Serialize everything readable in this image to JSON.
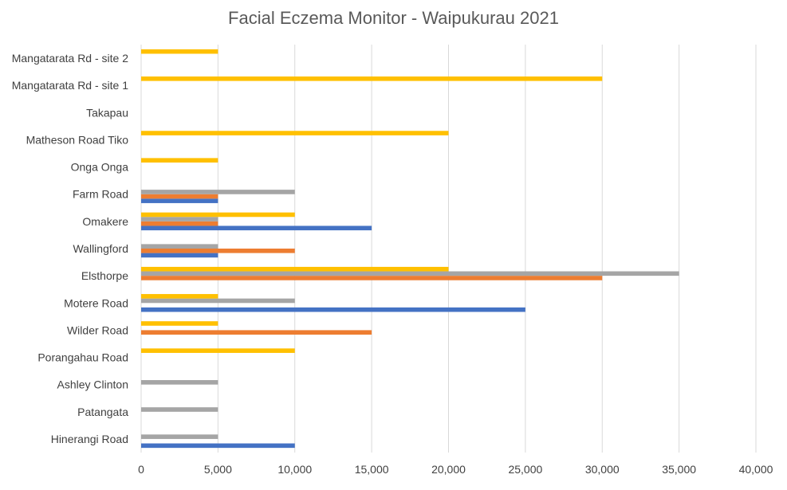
{
  "chart_data": {
    "type": "bar",
    "orientation": "horizontal",
    "title": "Facial Eczema Monitor - Waipukurau 2021",
    "categories": [
      "Mangatarata Rd - site 2",
      "Mangatarata Rd - site 1",
      "Takapau",
      "Matheson Road Tiko",
      "Onga Onga",
      "Farm Road",
      "Omakere",
      "Wallingford",
      "Elsthorpe",
      "Motere Road",
      "Wilder Road",
      "Porangahau Road",
      "Ashley Clinton",
      "Patangata",
      "Hinerangi Road"
    ],
    "series": [
      {
        "color": "#4472C4",
        "values": [
          0,
          0,
          0,
          0,
          0,
          5000,
          15000,
          5000,
          0,
          25000,
          0,
          0,
          0,
          0,
          10000
        ]
      },
      {
        "color": "#ED7D31",
        "values": [
          0,
          0,
          0,
          0,
          0,
          5000,
          5000,
          10000,
          30000,
          0,
          15000,
          0,
          0,
          0,
          0
        ]
      },
      {
        "color": "#A5A5A5",
        "values": [
          0,
          0,
          0,
          0,
          0,
          10000,
          5000,
          5000,
          35000,
          10000,
          0,
          0,
          5000,
          5000,
          5000
        ]
      },
      {
        "color": "#FFC000",
        "values": [
          5000,
          30000,
          0,
          20000,
          5000,
          0,
          10000,
          0,
          20000,
          5000,
          5000,
          10000,
          0,
          0,
          0
        ]
      }
    ],
    "xlim": [
      0,
      40000
    ],
    "xticks": [
      "0",
      "5,000",
      "10,000",
      "15,000",
      "20,000",
      "25,000",
      "30,000",
      "35,000",
      "40,000"
    ],
    "xtick_values": [
      0,
      5000,
      10000,
      15000,
      20000,
      25000,
      30000,
      35000,
      40000
    ],
    "grid": true,
    "legend": "none"
  }
}
